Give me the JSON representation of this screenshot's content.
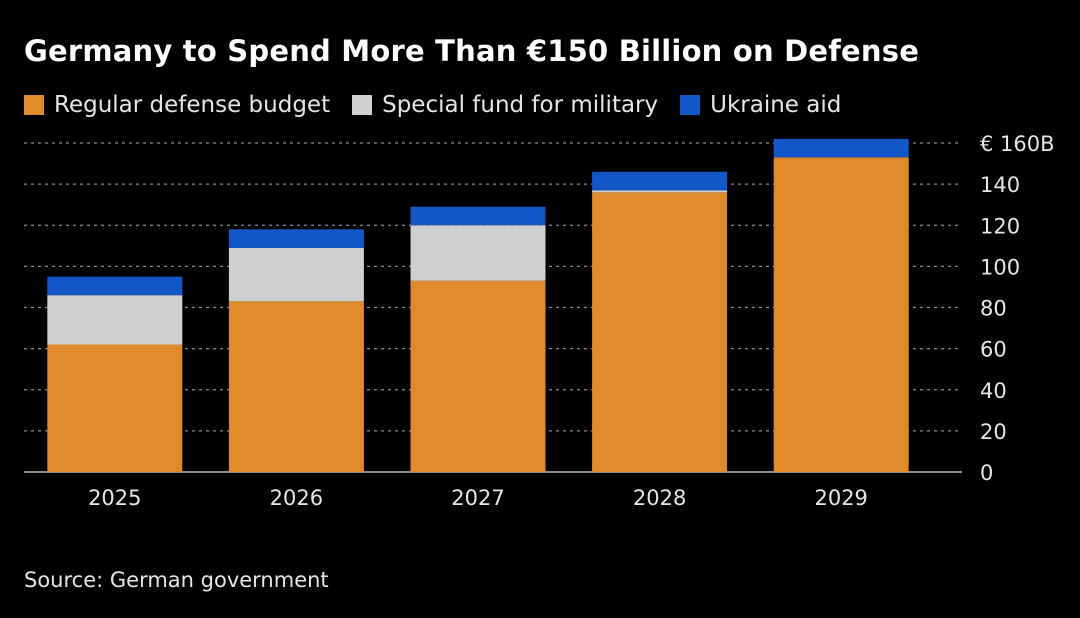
{
  "title": "Germany to Spend More Than €150 Billion on Defense",
  "source": "Source: German government",
  "chart_data": {
    "type": "bar",
    "stacked": true,
    "categories": [
      "2025",
      "2026",
      "2027",
      "2028",
      "2029"
    ],
    "series": [
      {
        "name": "Regular defense budget",
        "color": "#e08b2b",
        "values": [
          62,
          83,
          93,
          136,
          153
        ]
      },
      {
        "name": "Special fund for military",
        "color": "#cfcfcf",
        "values": [
          24,
          26,
          27,
          1,
          0
        ]
      },
      {
        "name": "Ukraine aid",
        "color": "#1256c8",
        "values": [
          9,
          9,
          9,
          9,
          9
        ]
      }
    ],
    "ylim": [
      0,
      160
    ],
    "yticks": [
      0,
      20,
      40,
      60,
      80,
      100,
      120,
      140,
      160
    ],
    "ytick_labels": [
      "0",
      "20",
      "40",
      "60",
      "80",
      "100",
      "120",
      "140",
      "€ 160B"
    ],
    "y_axis_position": "right",
    "grid": true,
    "legend_position": "top-left"
  }
}
